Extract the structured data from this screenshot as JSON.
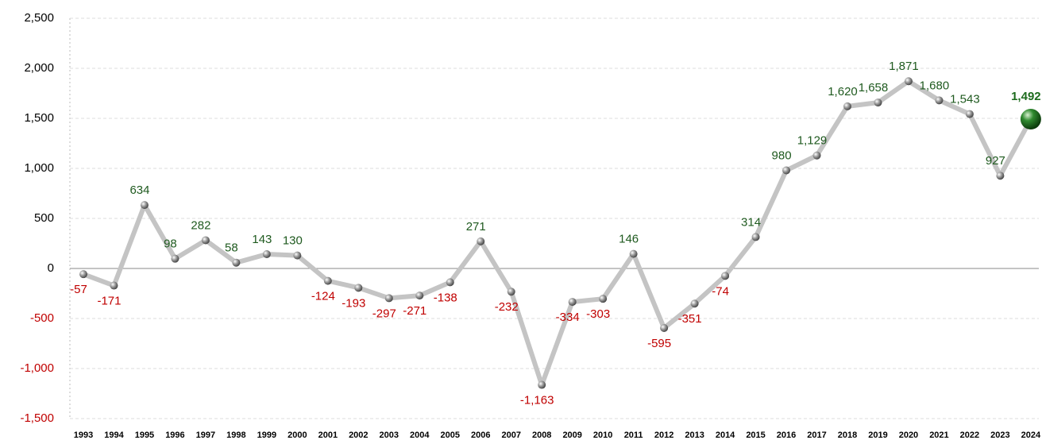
{
  "chart_data": {
    "type": "line",
    "categories": [
      "1993",
      "1994",
      "1995",
      "1996",
      "1997",
      "1998",
      "1999",
      "2000",
      "2001",
      "2002",
      "2003",
      "2004",
      "2005",
      "2006",
      "2007",
      "2008",
      "2009",
      "2010",
      "2011",
      "2012",
      "2013",
      "2014",
      "2015",
      "2016",
      "2017",
      "2018",
      "2019",
      "2020",
      "2021",
      "2022",
      "2023",
      "2024"
    ],
    "values": [
      -57,
      -171,
      634,
      98,
      282,
      58,
      143,
      130,
      -124,
      -193,
      -297,
      -271,
      -138,
      271,
      -232,
      -1163,
      -334,
      -303,
      146,
      -595,
      -351,
      -74,
      314,
      980,
      1129,
      1620,
      1658,
      1871,
      1680,
      1543,
      927,
      1492
    ],
    "value_labels": [
      "-57",
      "-171",
      "634",
      "98",
      "282",
      "58",
      "143",
      "130",
      "-124",
      "-193",
      "-297",
      "-271",
      "-138",
      "271",
      "-232",
      "-1,163",
      "-334",
      "-303",
      "146",
      "-595",
      "-351",
      "-74",
      "314",
      "980",
      "1,129",
      "1,620",
      "1,658",
      "1,871",
      "1,680",
      "1,543",
      "927",
      "1,492"
    ],
    "color": "#c4c4c4",
    "positive_color": "#1f5a1f",
    "negative_color": "#c00000",
    "highlight_color": "#1d6b1d",
    "ylim": [
      -1500,
      2500
    ],
    "yticks": [
      {
        "value": -1500,
        "label": "-1,500"
      },
      {
        "value": -1000,
        "label": "-1,000"
      },
      -500,
      0,
      500,
      {
        "value": 1000,
        "label": "1,000"
      },
      {
        "value": 1500,
        "label": "1,500"
      },
      {
        "value": 2000,
        "label": "2,000"
      },
      {
        "value": 2500,
        "label": "2,500"
      }
    ],
    "grid": true
  }
}
